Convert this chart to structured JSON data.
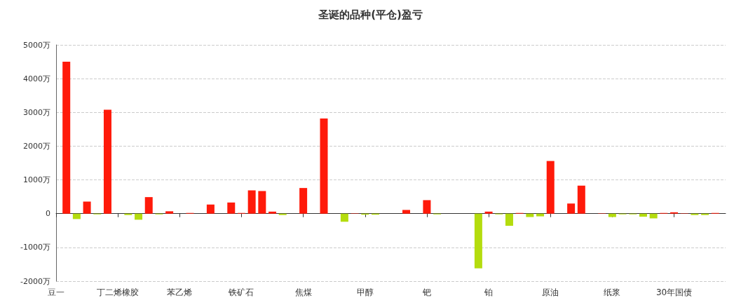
{
  "chart_data": {
    "type": "bar",
    "title": "圣诞的品种(平仓)盈亏",
    "categories": [
      "豆一",
      null,
      null,
      null,
      null,
      null,
      "丁二烯橡胶",
      null,
      null,
      null,
      null,
      null,
      "苯乙烯",
      null,
      null,
      null,
      null,
      null,
      "铁矿石",
      null,
      null,
      null,
      null,
      null,
      "焦煤",
      null,
      null,
      null,
      null,
      null,
      "甲醇",
      null,
      null,
      null,
      null,
      null,
      "钯",
      null,
      null,
      null,
      null,
      null,
      "铂",
      null,
      null,
      null,
      null,
      null,
      "原油",
      null,
      null,
      null,
      null,
      null,
      "纸浆",
      null,
      null,
      null,
      null,
      null,
      "30年国债",
      null,
      null,
      null,
      null,
      null
    ],
    "values": [
      0,
      4500,
      -160,
      360,
      -20,
      3080,
      0,
      -40,
      -180,
      490,
      -20,
      70,
      0,
      20,
      0,
      270,
      0,
      330,
      20,
      690,
      670,
      60,
      -40,
      0,
      760,
      0,
      2820,
      0,
      -240,
      10,
      -30,
      -30,
      0,
      0,
      110,
      0,
      400,
      -20,
      0,
      0,
      0,
      -1620,
      60,
      -20,
      -360,
      20,
      -100,
      -80,
      1560,
      0,
      300,
      830,
      0,
      10,
      -100,
      -20,
      -20,
      -90,
      -140,
      20,
      40,
      10,
      -40,
      -40,
      20,
      0
    ],
    "colors": [
      "#ff1a0a",
      "#ff1a0a",
      "#b4dc0e",
      "#ff1a0a",
      "#b4dc0e",
      "#ff1a0a",
      "#ff1a0a",
      "#b4dc0e",
      "#b4dc0e",
      "#ff1a0a",
      "#b4dc0e",
      "#ff1a0a",
      "#ff1a0a",
      "#ff1a0a",
      "#ff1a0a",
      "#ff1a0a",
      "#ff1a0a",
      "#ff1a0a",
      "#ff1a0a",
      "#ff1a0a",
      "#ff1a0a",
      "#ff1a0a",
      "#b4dc0e",
      "#ff1a0a",
      "#ff1a0a",
      "#ff1a0a",
      "#ff1a0a",
      "#ff1a0a",
      "#b4dc0e",
      "#ff1a0a",
      "#b4dc0e",
      "#b4dc0e",
      "#ff1a0a",
      "#ff1a0a",
      "#ff1a0a",
      "#ff1a0a",
      "#ff1a0a",
      "#b4dc0e",
      "#ff1a0a",
      "#ff1a0a",
      "#ff1a0a",
      "#b4dc0e",
      "#ff1a0a",
      "#b4dc0e",
      "#b4dc0e",
      "#ff1a0a",
      "#b4dc0e",
      "#b4dc0e",
      "#ff1a0a",
      "#ff1a0a",
      "#ff1a0a",
      "#ff1a0a",
      "#ff1a0a",
      "#ff1a0a",
      "#b4dc0e",
      "#b4dc0e",
      "#b4dc0e",
      "#b4dc0e",
      "#b4dc0e",
      "#ff1a0a",
      "#ff1a0a",
      "#ff1a0a",
      "#b4dc0e",
      "#b4dc0e",
      "#ff1a0a",
      "#ff1a0a"
    ],
    "ylim": [
      -2000,
      5000
    ],
    "yticks": [
      {
        "value": -2000,
        "label": "-2000万"
      },
      {
        "value": -1000,
        "label": "-1000万"
      },
      {
        "value": 0,
        "label": "0"
      },
      {
        "value": 1000,
        "label": "1000万"
      },
      {
        "value": 2000,
        "label": "2000万"
      },
      {
        "value": 3000,
        "label": "3000万"
      },
      {
        "value": 4000,
        "label": "4000万"
      },
      {
        "value": 5000,
        "label": "5000万"
      }
    ],
    "grid": "y"
  }
}
